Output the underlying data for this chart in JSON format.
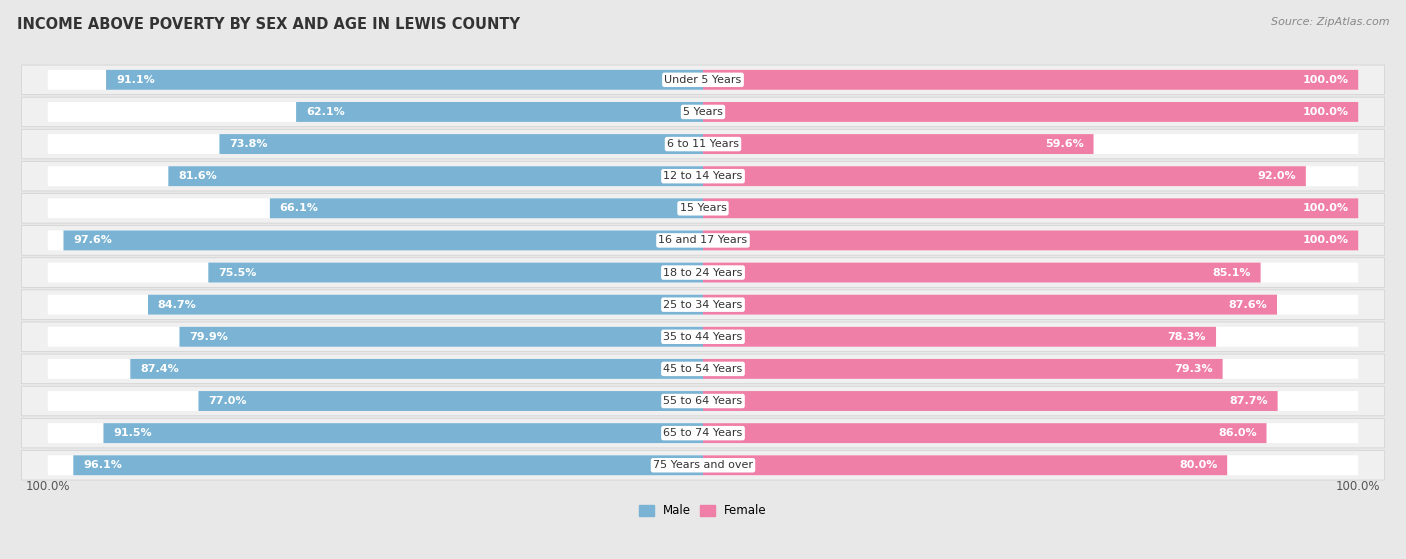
{
  "title": "INCOME ABOVE POVERTY BY SEX AND AGE IN LEWIS COUNTY",
  "source": "Source: ZipAtlas.com",
  "categories": [
    "Under 5 Years",
    "5 Years",
    "6 to 11 Years",
    "12 to 14 Years",
    "15 Years",
    "16 and 17 Years",
    "18 to 24 Years",
    "25 to 34 Years",
    "35 to 44 Years",
    "45 to 54 Years",
    "55 to 64 Years",
    "65 to 74 Years",
    "75 Years and over"
  ],
  "male": [
    91.1,
    62.1,
    73.8,
    81.6,
    66.1,
    97.6,
    75.5,
    84.7,
    79.9,
    87.4,
    77.0,
    91.5,
    96.1
  ],
  "female": [
    100.0,
    100.0,
    59.6,
    92.0,
    100.0,
    100.0,
    85.1,
    87.6,
    78.3,
    79.3,
    87.7,
    86.0,
    80.0
  ],
  "male_color": "#7ab3d3",
  "female_color": "#f07fa8",
  "male_light_color": "#c5dcec",
  "female_light_color": "#f9c0d3",
  "male_label": "Male",
  "female_label": "Female",
  "background_color": "#e8e8e8",
  "row_bg_color": "#f0f0f0",
  "bar_bg_color": "#ffffff",
  "title_fontsize": 10.5,
  "label_fontsize": 8,
  "tick_fontsize": 8.5,
  "source_fontsize": 8
}
